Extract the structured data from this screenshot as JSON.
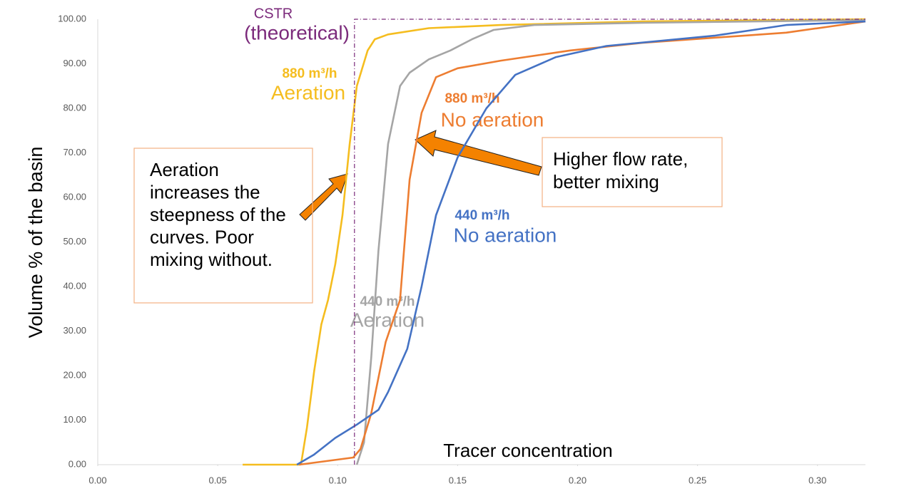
{
  "chart_data": {
    "type": "line",
    "x_label": "Tracer concentration",
    "y_label": "Volume  % of the basin",
    "xlim": [
      0,
      0.32
    ],
    "ylim": [
      0,
      100
    ],
    "xticks": [
      {
        "value": 0,
        "label": "0.00"
      },
      {
        "value": 0.05,
        "label": "0.05"
      },
      {
        "value": 0.1,
        "label": "0.10"
      },
      {
        "value": 0.15,
        "label": "0.15"
      },
      {
        "value": 0.2,
        "label": "0.20"
      },
      {
        "value": 0.25,
        "label": "0.25"
      },
      {
        "value": 0.3,
        "label": "0.30"
      }
    ],
    "yticks": [
      {
        "value": 0,
        "label": "0.00"
      },
      {
        "value": 10,
        "label": "10.00"
      },
      {
        "value": 20,
        "label": "20.00"
      },
      {
        "value": 30,
        "label": "30.00"
      },
      {
        "value": 40,
        "label": "40.00"
      },
      {
        "value": 50,
        "label": "50.00"
      },
      {
        "value": 60,
        "label": "60.00"
      },
      {
        "value": 70,
        "label": "70.00"
      },
      {
        "value": 80,
        "label": "80.00"
      },
      {
        "value": 90,
        "label": "90.00"
      },
      {
        "value": 100,
        "label": "100.00"
      }
    ],
    "series": [
      {
        "name": "880 m³/h",
        "label": "Aeration",
        "color": "#f5bd1f",
        "x": [
          0.0604,
          0.0842,
          0.0848,
          0.0872,
          0.0902,
          0.0932,
          0.096,
          0.099,
          0.102,
          0.105,
          0.108,
          0.1125,
          0.1155,
          0.121,
          0.138,
          0.168,
          0.227,
          0.32
        ],
        "values": [
          0,
          0,
          0.3,
          8.3,
          21,
          31.5,
          37,
          45,
          56,
          72,
          85,
          93,
          95.5,
          96.6,
          98,
          98.7,
          99.5,
          100
        ]
      },
      {
        "name": "440 m³/h",
        "label": "Aeration",
        "color": "#a5a5a5",
        "x": [
          0.108,
          0.111,
          0.114,
          0.117,
          0.121,
          0.126,
          0.13,
          0.138,
          0.147,
          0.156,
          0.165,
          0.182,
          0.227,
          0.32
        ],
        "values": [
          0,
          5,
          24,
          48,
          72,
          85,
          88,
          91,
          93,
          95.5,
          97.6,
          98.7,
          99.2,
          99.8
        ]
      },
      {
        "name": "880 m³/h",
        "label": "No aeration",
        "color": "#ed7d31",
        "x": [
          0.084,
          0.1065,
          0.1095,
          0.114,
          0.12,
          0.126,
          0.13,
          0.135,
          0.141,
          0.15,
          0.168,
          0.197,
          0.227,
          0.287,
          0.32
        ],
        "values": [
          0,
          1.6,
          3.5,
          11.5,
          27.5,
          37,
          64,
          79,
          87,
          89,
          90.7,
          93,
          94.7,
          97,
          99.5
        ]
      },
      {
        "name": "440 m³/h",
        "label": "No aeration",
        "color": "#4472c4",
        "x": [
          0.083,
          0.09,
          0.099,
          0.108,
          0.117,
          0.121,
          0.129,
          0.135,
          0.141,
          0.15,
          0.162,
          0.174,
          0.191,
          0.212,
          0.257,
          0.287,
          0.32
        ],
        "values": [
          0,
          2.2,
          6,
          9,
          12.3,
          16.3,
          26,
          40,
          56,
          69,
          80,
          87.5,
          91.5,
          94,
          96.3,
          98.7,
          99.5
        ]
      },
      {
        "name": "CSTR",
        "label": "(theoretical)",
        "color": "#7b2a7b",
        "dashed": true,
        "x": [
          0.107,
          0.107,
          0.32
        ],
        "values": [
          0,
          100,
          100
        ]
      }
    ],
    "annotations": [
      {
        "lines": [
          "Aeration",
          "increases the",
          "steepness of the",
          "curves. Poor",
          "mixing without."
        ]
      },
      {
        "lines": [
          "Higher flow rate,",
          "better mixing"
        ]
      }
    ]
  }
}
